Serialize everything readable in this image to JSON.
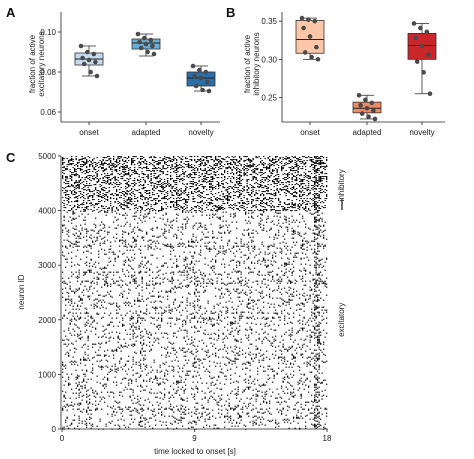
{
  "panels": {
    "a": "A",
    "b": "B",
    "c": "C"
  },
  "chart_data": [
    {
      "type": "box",
      "panel": "A",
      "title": "",
      "ylabel_line1": "fraction of active",
      "ylabel_line2": "excitatory neurons",
      "ylim": [
        0.055,
        0.11
      ],
      "yticks": [
        0.06,
        0.08,
        0.1
      ],
      "ytick_labels": [
        "0.06",
        "0.08",
        "0.10"
      ],
      "categories": [
        "onset",
        "adapted",
        "novelty"
      ],
      "colors": [
        "#c6dbef",
        "#6aaed6",
        "#2b6fa8"
      ],
      "boxes": [
        {
          "q1": 0.0835,
          "median": 0.0865,
          "q3": 0.0895,
          "whisker_low": 0.078,
          "whisker_high": 0.093
        },
        {
          "q1": 0.0915,
          "median": 0.0945,
          "q3": 0.0965,
          "whisker_low": 0.088,
          "whisker_high": 0.099
        },
        {
          "q1": 0.073,
          "median": 0.077,
          "q3": 0.08,
          "whisker_low": 0.0705,
          "whisker_high": 0.083
        }
      ],
      "points": [
        [
          0.093,
          0.09,
          0.089,
          0.087,
          0.086,
          0.085,
          0.084,
          0.08,
          0.078
        ],
        [
          0.099,
          0.097,
          0.096,
          0.095,
          0.094,
          0.093,
          0.092,
          0.09,
          0.089
        ],
        [
          0.083,
          0.081,
          0.08,
          0.078,
          0.077,
          0.075,
          0.073,
          0.071,
          0.0705
        ]
      ]
    },
    {
      "type": "box",
      "panel": "B",
      "title": "",
      "ylabel_line1": "fraction of active",
      "ylabel_line2": "inhibitory neurons",
      "ylim": [
        0.218,
        0.362
      ],
      "yticks": [
        0.25,
        0.3,
        0.35
      ],
      "ytick_labels": [
        "0.25",
        "0.30",
        "0.35"
      ],
      "categories": [
        "onset",
        "adapted",
        "novelty"
      ],
      "colors": [
        "#fcc7a8",
        "#ee8a65",
        "#c8262b"
      ],
      "boxes": [
        {
          "q1": 0.308,
          "median": 0.326,
          "q3": 0.351,
          "whisker_low": 0.3,
          "whisker_high": 0.354
        },
        {
          "q1": 0.23,
          "median": 0.236,
          "q3": 0.244,
          "whisker_low": 0.222,
          "whisker_high": 0.253
        },
        {
          "q1": 0.3,
          "median": 0.318,
          "q3": 0.334,
          "whisker_low": 0.255,
          "whisker_high": 0.347
        }
      ],
      "points": [
        [
          0.354,
          0.352,
          0.35,
          0.341,
          0.33,
          0.316,
          0.309,
          0.303,
          0.3
        ],
        [
          0.253,
          0.247,
          0.243,
          0.24,
          0.236,
          0.233,
          0.229,
          0.225,
          0.222
        ],
        [
          0.347,
          0.341,
          0.336,
          0.328,
          0.318,
          0.306,
          0.297,
          0.283,
          0.255
        ]
      ]
    },
    {
      "type": "raster",
      "panel": "C",
      "title": "",
      "xlabel": "time locked to onset [s]",
      "ylabel": "neuron ID",
      "xlim": [
        0,
        18
      ],
      "ylim": [
        0,
        5000
      ],
      "xticks": [
        0,
        9,
        18
      ],
      "xtick_labels": [
        "0",
        "9",
        "18"
      ],
      "yticks": [
        0,
        1000,
        2000,
        3000,
        4000,
        5000
      ],
      "ytick_labels": [
        "0",
        "1000",
        "2000",
        "3000",
        "4000",
        "5000"
      ],
      "populations": [
        {
          "name": "excitatory",
          "neuron_range": [
            0,
            4000
          ],
          "color": "#2b2a8a",
          "relative_density": 0.32
        },
        {
          "name": "inhibitory",
          "neuron_range": [
            4000,
            5000
          ],
          "color": "#c8262b",
          "relative_density": 1.0
        }
      ],
      "scalebar_neurons": 200
    }
  ]
}
